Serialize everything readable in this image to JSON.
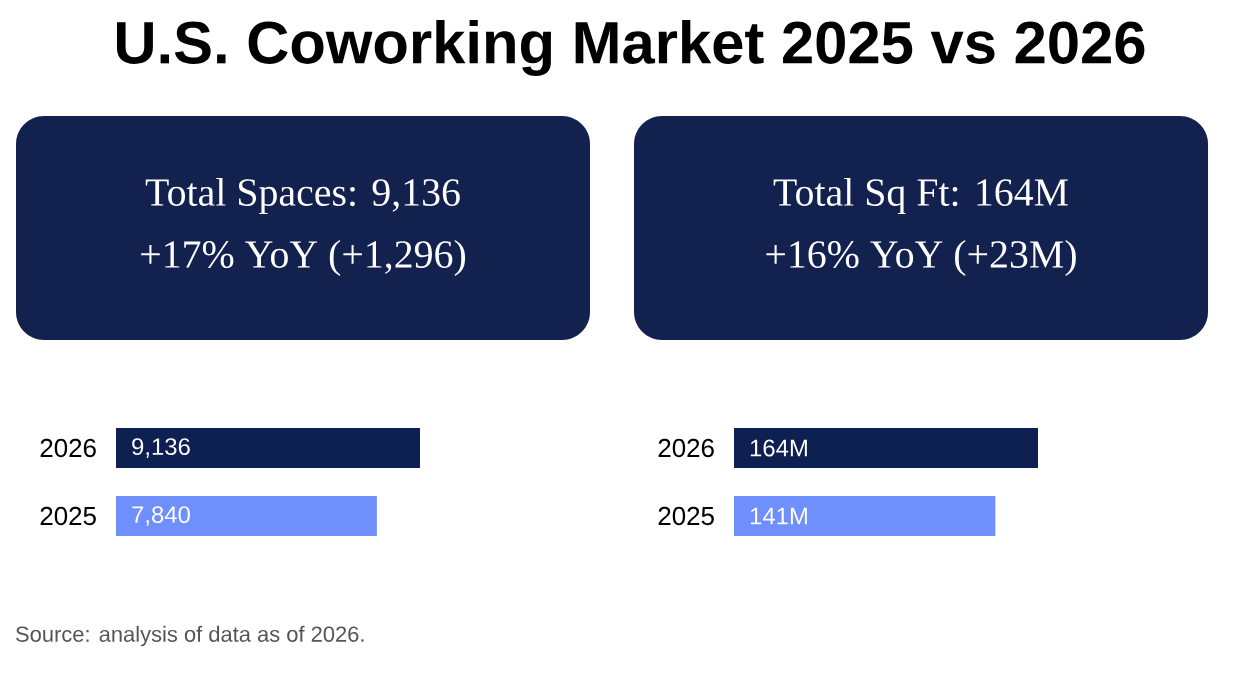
{
  "chart_data": [
    {
      "type": "other",
      "title": "U.S. Coworking Market 2025 vs 2026",
      "annotations": [
        "Source: analysis of data as of 2026."
      ]
    },
    {
      "type": "bar",
      "orientation": "horizontal",
      "title": "Total Spaces: 9,136",
      "subtitle": "+17% YoY (+1,296)",
      "categories": [
        "2026",
        "2025"
      ],
      "values": [
        9136,
        7840
      ],
      "value_labels": [
        "9,136",
        "7,840"
      ],
      "colors": [
        "#0e1f52",
        "#6f8ffc"
      ]
    },
    {
      "type": "bar",
      "orientation": "horizontal",
      "title": "Total Sq Ft: 164M",
      "subtitle": "+16% YoY (+23M)",
      "categories": [
        "2026",
        "2025"
      ],
      "values": [
        164,
        141
      ],
      "value_labels": [
        "164M",
        "141M"
      ],
      "colors": [
        "#0e1f52",
        "#6f8ffc"
      ]
    }
  ]
}
